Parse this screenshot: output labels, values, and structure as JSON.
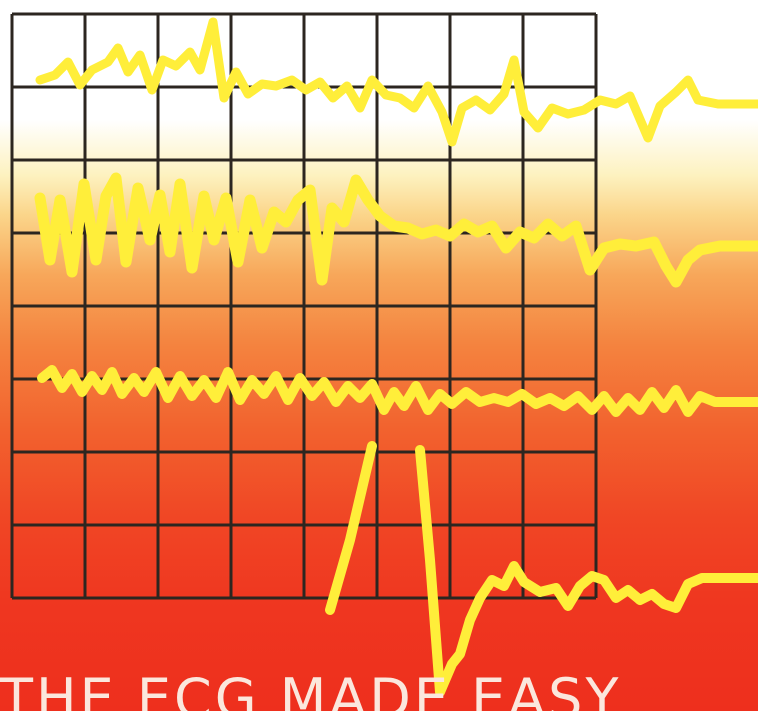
{
  "cover": {
    "title": "THE ECG MADE EASY",
    "trace_color": "#ffee3a",
    "grid_color": "#2c2620",
    "gradient": [
      "#ffffff",
      "#fbd58a",
      "#f4833f",
      "#ee2f1d"
    ]
  }
}
